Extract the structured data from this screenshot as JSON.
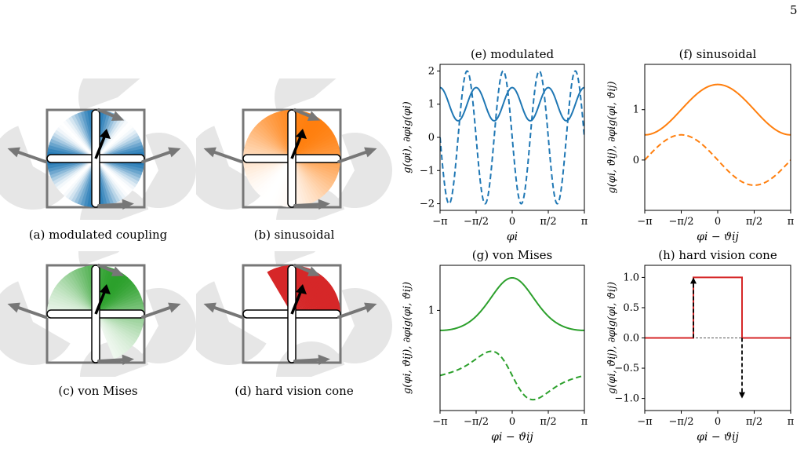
{
  "page_number": "5",
  "colors": {
    "blue": "#1f77b4",
    "orange": "#ff7f0e",
    "green": "#2ca02c",
    "red": "#d62728",
    "gray": "#777777",
    "light_gray": "#e6e6e6"
  },
  "diagrams": [
    {
      "caption": "(a) modulated coupling",
      "kind": "modulated",
      "color": "#1f77b4"
    },
    {
      "caption": "(b) sinusoidal",
      "kind": "sinusoidal",
      "color": "#ff7f0e"
    },
    {
      "caption": "(c) von Mises",
      "kind": "vonmises",
      "color": "#2ca02c"
    },
    {
      "caption": "(d) hard vision cone",
      "kind": "hard",
      "color": "#d62728"
    }
  ],
  "chart_data": [
    {
      "id": "e",
      "type": "line",
      "title": "(e) modulated",
      "xlabel": "φi",
      "ylabel": "g(φi),  ∂φig(φi)",
      "xlim": [
        -3.1416,
        3.1416
      ],
      "ylim": [
        -2.2,
        2.2
      ],
      "xticks": [
        -3.1416,
        -1.5708,
        0,
        1.5708,
        3.1416
      ],
      "xticklabels": [
        "−π",
        "−π/2",
        "0",
        "π/2",
        "π"
      ],
      "yticks": [
        -2,
        -1,
        0,
        1,
        2
      ],
      "yticklabels": [
        "−2",
        "−1",
        "0",
        "1",
        "2"
      ],
      "color": "#1f77b4",
      "series": [
        {
          "style": "solid",
          "function": "1 + 0.5*cos(4x)",
          "x_range": [
            -3.1416,
            3.1416
          ],
          "y_range": [
            0.5,
            1.5
          ]
        },
        {
          "style": "dashed",
          "function": "-2*sin(4x)",
          "x_range": [
            -3.1416,
            3.1416
          ],
          "y_range": [
            -2,
            2
          ]
        }
      ]
    },
    {
      "id": "f",
      "type": "line",
      "title": "(f) sinusoidal",
      "xlabel": "φi − ϑij",
      "ylabel": "g(φi, ϑij),  ∂φig(φi, ϑij)",
      "xlim": [
        -3.1416,
        3.1416
      ],
      "ylim": [
        -1.0,
        1.9
      ],
      "xticks": [
        -3.1416,
        -1.5708,
        0,
        1.5708,
        3.1416
      ],
      "xticklabels": [
        "−π",
        "−π/2",
        "0",
        "π/2",
        "π"
      ],
      "yticks": [
        0,
        1
      ],
      "yticklabels": [
        "0",
        "1"
      ],
      "color": "#ff7f0e",
      "series": [
        {
          "style": "solid",
          "function": "1 + 0.5*cos(x)",
          "x_range": [
            -3.1416,
            3.1416
          ],
          "y_range": [
            0.5,
            1.5
          ]
        },
        {
          "style": "dashed",
          "function": "-0.5*sin(x)",
          "x_range": [
            -3.1416,
            3.1416
          ],
          "y_range": [
            -0.5,
            0.5
          ]
        }
      ]
    },
    {
      "id": "g",
      "type": "line",
      "title": "(g) von Mises",
      "xlabel": "φi − ϑij",
      "ylabel": "g(φi, ϑij),  ∂φig(φi, ϑij)",
      "xlim": [
        -3.1416,
        3.1416
      ],
      "ylim": [
        -1.0,
        1.9
      ],
      "xticks": [
        -3.1416,
        -1.5708,
        0,
        1.5708,
        3.1416
      ],
      "xticklabels": [
        "−π",
        "−π/2",
        "0",
        "π/2",
        "π"
      ],
      "yticks": [
        1
      ],
      "yticklabels": [
        "1"
      ],
      "color": "#2ca02c",
      "series": [
        {
          "style": "solid",
          "function": "0.6 + 1.05*(exp(cos x) - exp(-1))/(e - exp(-1))",
          "x_range": [
            -3.1416,
            3.1416
          ],
          "y_range": [
            0.6,
            1.65
          ]
        },
        {
          "style": "dashed",
          "function": "-0.3 - 0.9*sin(x)*exp(cos x)/e",
          "x_range": [
            -3.1416,
            3.1416
          ],
          "y_range": [
            -0.58,
            0.55
          ]
        }
      ]
    },
    {
      "id": "h",
      "type": "line",
      "title": "(h) hard vision cone",
      "xlabel": "φi − ϑij",
      "ylabel": "g(φi, ϑij),  ∂φig(φi, ϑij)",
      "xlim": [
        -3.1416,
        3.1416
      ],
      "ylim": [
        -1.2,
        1.2
      ],
      "xticks": [
        -3.1416,
        -1.5708,
        0,
        1.5708,
        3.1416
      ],
      "xticklabels": [
        "−π",
        "−π/2",
        "0",
        "π/2",
        "π"
      ],
      "yticks": [
        -1.0,
        -0.5,
        0.0,
        0.5,
        1.0
      ],
      "yticklabels": [
        "−1.0",
        "−0.5",
        "0.0",
        "0.5",
        "1.0"
      ],
      "color": "#d62728",
      "series": [
        {
          "style": "solid",
          "function": "step: 1 for |x| < 1.0472, else 0",
          "x": [
            -3.1416,
            -1.0472,
            -1.0472,
            1.0472,
            1.0472,
            3.1416
          ],
          "y": [
            0,
            0,
            1,
            1,
            0,
            0
          ]
        },
        {
          "style": "dashed-arrows",
          "arrows": [
            {
              "x": -1.0472,
              "from": 0,
              "to": 1
            },
            {
              "x": 1.0472,
              "from": 0,
              "to": -1
            }
          ]
        }
      ]
    }
  ]
}
